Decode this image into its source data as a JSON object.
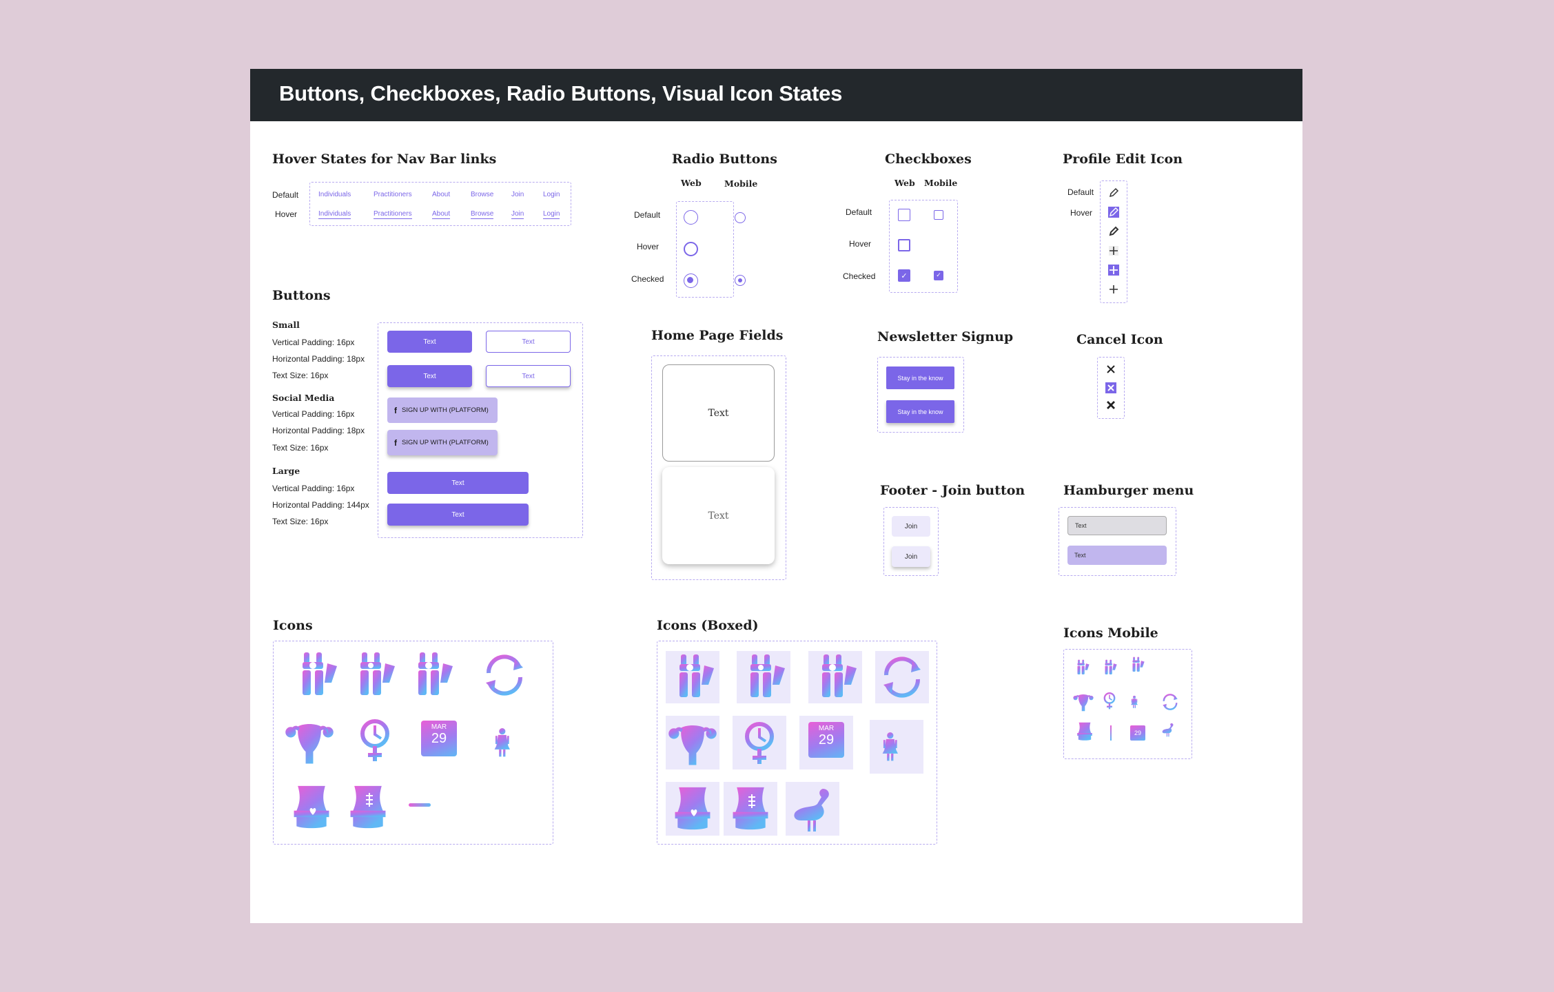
{
  "header": {
    "title": "Buttons, Checkboxes, Radio Buttons, Visual Icon States"
  },
  "colors": {
    "accent": "#7B66E8",
    "accent_light": "#C1B6EE",
    "banner": "#23282C",
    "background": "#DFCCD8",
    "icon_gradient": [
      "#E85FD6",
      "#8A7BF2",
      "#5FB8F5"
    ]
  },
  "nav_hover": {
    "title": "Hover States for Nav Bar links",
    "row_labels": [
      "Default",
      "Hover"
    ],
    "links": [
      "Individuals",
      "Practitioners",
      "About",
      "Browse",
      "Join",
      "Login"
    ]
  },
  "radio": {
    "title": "Radio Buttons",
    "cols": [
      "Web",
      "Mobile"
    ],
    "rows": [
      "Default",
      "Hover",
      "Checked"
    ]
  },
  "checkboxes": {
    "title": "Checkboxes",
    "cols": [
      "Web",
      "Mobile"
    ],
    "rows": [
      "Default",
      "Hover",
      "Checked"
    ]
  },
  "profile_edit": {
    "title": "Profile Edit Icon",
    "rows": [
      "Default",
      "Hover"
    ],
    "icons": [
      "pencil-icon",
      "pencil-filled-icon",
      "pencil-hover-icon",
      "plus-icon",
      "plus-filled-icon",
      "plus-icon"
    ]
  },
  "buttons": {
    "title": "Buttons",
    "small": {
      "heading": "Small",
      "specs": [
        "Vertical Padding: 16px",
        "Horizontal Padding: 18px",
        "Text Size: 16px"
      ]
    },
    "social": {
      "heading": "Social Media",
      "specs": [
        "Vertical Padding: 16px",
        "Horizontal Padding: 18px",
        "Text Size: 16px"
      ]
    },
    "large": {
      "heading": "Large",
      "specs": [
        "Vertical Padding: 16px",
        "Horizontal Padding: 144px",
        "Text Size: 16px"
      ]
    },
    "text": "Text",
    "social_text": "SIGN UP WITH (PLATFORM)",
    "social_icon": "facebook-icon"
  },
  "home_fields": {
    "title": "Home Page Fields",
    "fields": [
      "Text",
      "Text"
    ]
  },
  "newsletter": {
    "title": "Newsletter Signup",
    "buttons": [
      "Stay in the know",
      "Stay in the know"
    ]
  },
  "cancel": {
    "title": "Cancel Icon",
    "icons": [
      "close-icon",
      "close-boxed-icon",
      "close-bold-icon"
    ]
  },
  "footer_join": {
    "title": "Footer - Join button",
    "buttons": [
      "Join",
      "Join"
    ]
  },
  "hamburger": {
    "title": "Hamburger menu",
    "items": [
      "Text",
      "Text"
    ]
  },
  "icons": {
    "title": "Icons",
    "items": [
      "body-clock-icon",
      "body-drop-icon",
      "body-burst-icon",
      "refresh-icon",
      "uterus-icon",
      "female-clock-icon",
      "calendar-icon",
      "doctor-icon",
      "torso-heart-icon",
      "torso-scar-icon",
      "flat-bar-icon"
    ],
    "calendar": {
      "month": "MAR",
      "day": "29"
    }
  },
  "icons_boxed": {
    "title": "Icons (Boxed)",
    "items": [
      "body-clock-icon",
      "body-drop-icon",
      "body-burst-icon",
      "refresh-icon",
      "uterus-icon",
      "female-clock-icon",
      "calendar-icon",
      "doctor-icon",
      "torso-heart-icon",
      "torso-scar-icon",
      "flamingo-icon"
    ]
  },
  "icons_mobile": {
    "title": "Icons Mobile",
    "items": [
      "body-clock-icon",
      "body-drop-icon",
      "body-burst-icon",
      "uterus-icon",
      "female-clock-icon",
      "doctor-icon",
      "refresh-icon",
      "torso-heart-icon",
      "thin-line-icon",
      "calendar-icon",
      "flamingo-icon"
    ]
  }
}
